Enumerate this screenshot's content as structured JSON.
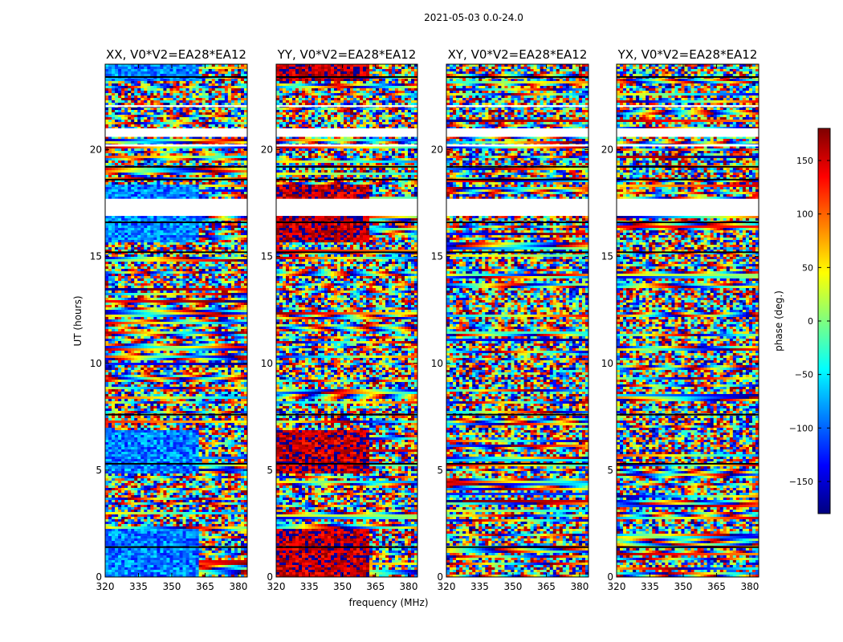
{
  "chart_data": {
    "type": "heatmap",
    "title": "2021-05-03 0.0-24.0",
    "xlabel": "frequency (MHz)",
    "ylabel": "UT (hours)",
    "xlim": [
      320,
      384
    ],
    "ylim": [
      0,
      24
    ],
    "x_ticks": [
      "320",
      "335",
      "350",
      "365",
      "380"
    ],
    "x_tick_values": [
      320,
      335,
      350,
      365,
      380
    ],
    "y_ticks": [
      "0",
      "5",
      "10",
      "15",
      "20"
    ],
    "y_tick_values": [
      0,
      5,
      10,
      15,
      20
    ],
    "colorbar": {
      "label": "phase (deg.)",
      "range": [
        -180,
        180
      ],
      "ticks": [
        "150",
        "100",
        "50",
        "0",
        "−50",
        "−100",
        "−150"
      ],
      "tick_values": [
        150,
        100,
        50,
        0,
        -50,
        -100,
        -150
      ],
      "colormap": "jet",
      "colors": [
        "#00007f",
        "#0000ff",
        "#007fff",
        "#00ffff",
        "#7fff7f",
        "#ffff00",
        "#ff7f00",
        "#ff0000",
        "#7f0000"
      ]
    },
    "flagged_ut_ranges": [
      [
        17.7,
        16.9
      ],
      [
        20.6,
        21.0
      ],
      [
        20.15,
        20.25
      ],
      [
        22.0,
        22.08
      ]
    ],
    "panels": [
      {
        "title": "XX, V0*V2=EA28*EA12",
        "dominant_phase": -90
      },
      {
        "title": "YY, V0*V2=EA28*EA12",
        "dominant_phase": 160
      },
      {
        "title": "XY, V0*V2=EA28*EA12",
        "dominant_phase": null
      },
      {
        "title": "YX, V0*V2=EA28*EA12",
        "dominant_phase": null
      }
    ]
  }
}
